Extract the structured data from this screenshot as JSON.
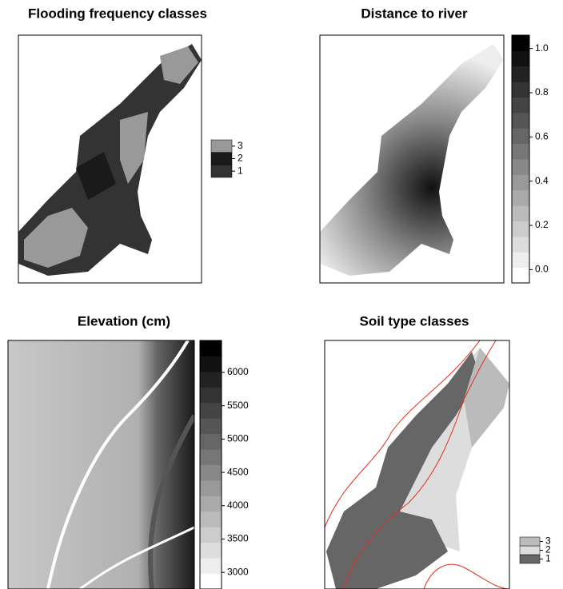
{
  "panels": [
    {
      "title": "Flooding frequency classes",
      "legend": {
        "type": "classes",
        "categories": [
          "1",
          "2",
          "3"
        ],
        "colors": [
          "#333333",
          "#1a1a1a",
          "#999999"
        ]
      }
    },
    {
      "title": "Distance to river",
      "legend": {
        "type": "colorbar",
        "clim": [
          -0.06,
          1.06
        ],
        "ticks": [
          {
            "value": 0,
            "label": "0.0"
          },
          0.2,
          0.4,
          0.6,
          0.8,
          {
            "value": 1,
            "label": "1.0"
          }
        ]
      }
    },
    {
      "title": "Elevation (cm)",
      "legend": {
        "type": "colorbar",
        "clim": [
          2750,
          6480
        ],
        "ticks": [
          3000,
          3500,
          4000,
          4500,
          5000,
          5500,
          6000
        ]
      }
    },
    {
      "title": "Soil type classes",
      "legend": {
        "type": "classes",
        "categories": [
          "1",
          "2",
          "3"
        ],
        "colors": [
          "#666666",
          "#dddddd",
          "#bbbbbb"
        ]
      }
    }
  ]
}
